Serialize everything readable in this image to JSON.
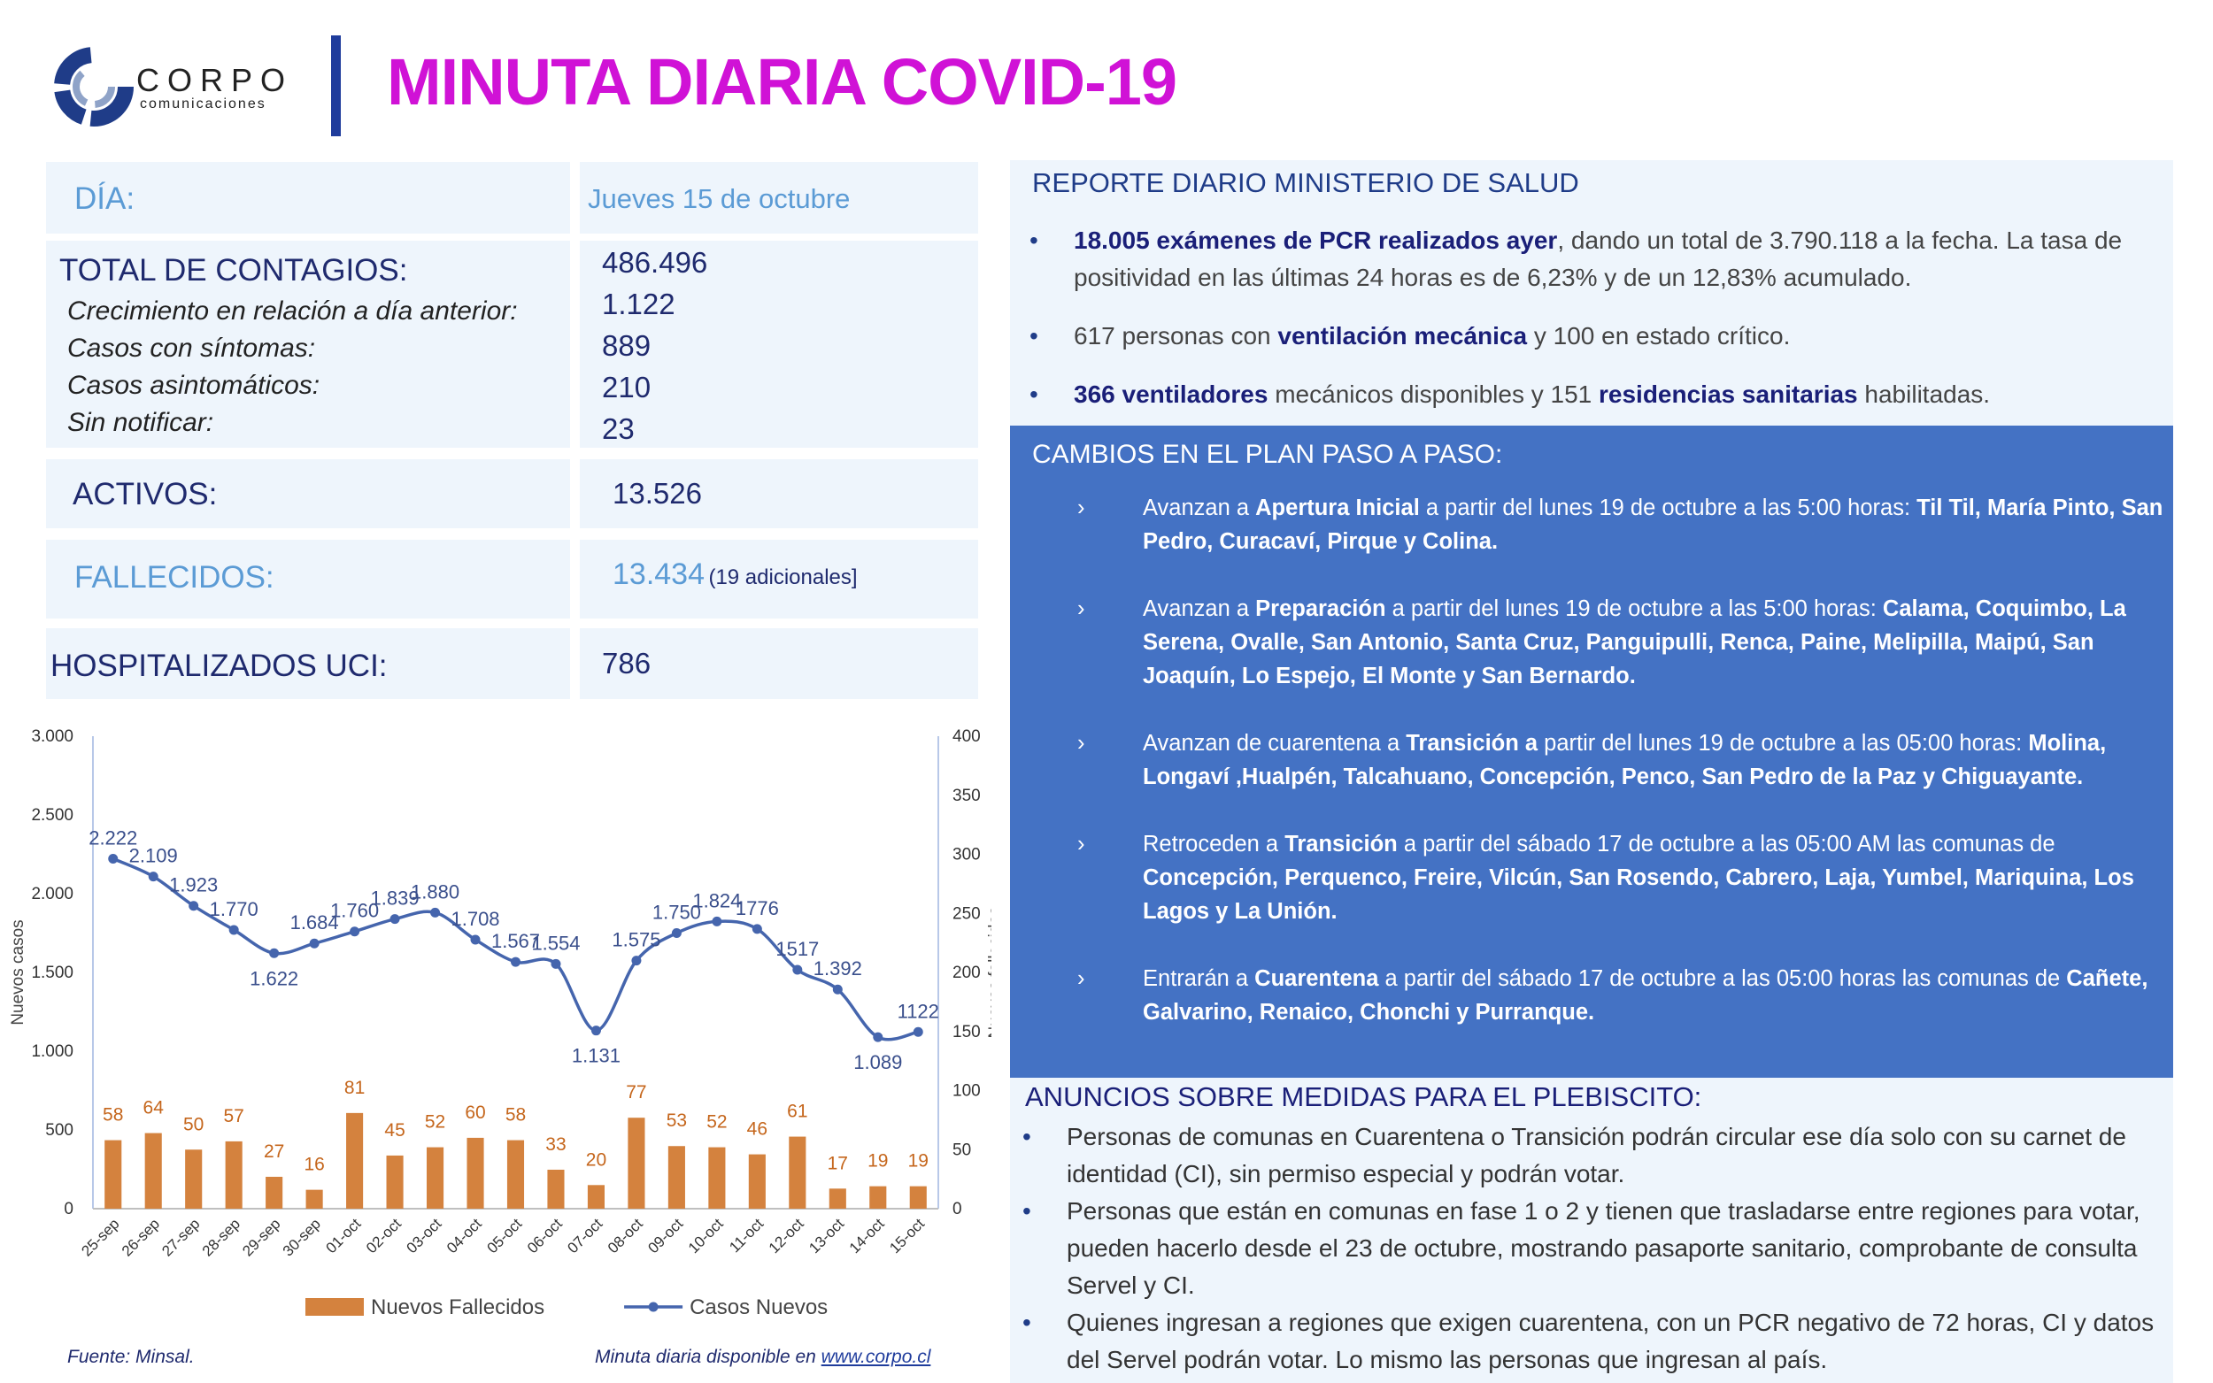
{
  "header": {
    "logo_name": "CORPO",
    "logo_sub": "comunicaciones",
    "title": "MINUTA DIARIA COVID-19"
  },
  "table": {
    "dia": {
      "label": "DÍA:",
      "value": "Jueves 15 de octubre"
    },
    "contagios": {
      "label": "TOTAL DE CONTAGIOS:",
      "value": "486.496"
    },
    "details": [
      [
        "Crecimiento en relación a día anterior:",
        "1.122"
      ],
      [
        "Casos con síntomas:",
        "889"
      ],
      [
        "Casos asintomáticos:",
        "210"
      ],
      [
        "Sin notificar:",
        "23"
      ]
    ],
    "activos": {
      "label": "ACTIVOS:",
      "value": "13.526"
    },
    "fallecidos": {
      "label": "FALLECIDOS:",
      "value": "13.434",
      "note": "(19 adicionales]"
    },
    "uci": {
      "label": "HOSPITALIZADOS UCI:",
      "value": "786"
    }
  },
  "report": {
    "title": "REPORTE DIARIO MINISTERIO DE SALUD",
    "bullets": [
      [
        {
          "text": "18.005 exámenes de PCR realizados ayer",
          "bold": true
        },
        {
          "text": ", dando un total de 3.790.118 a la fecha. La tasa de positividad en las últimas 24 horas es de 6,23% y de un 12,83% acumulado."
        }
      ],
      [
        {
          "text": "617 personas con "
        },
        {
          "text": "ventilación mecánica",
          "bold": true
        },
        {
          "text": " y 100 en estado crítico."
        }
      ],
      [
        {
          "text": "366 ventiladores",
          "bold": true
        },
        {
          "text": " mecánicos disponibles y 151 "
        },
        {
          "text": "residencias sanitarias",
          "bold": true
        },
        {
          "text": " habilitadas."
        }
      ]
    ]
  },
  "plan": {
    "title": "CAMBIOS EN EL PLAN PASO A PASO:",
    "items": [
      [
        {
          "text": "Avanzan a "
        },
        {
          "text": "Apertura Inicial",
          "bold": true
        },
        {
          "text": " a partir del lunes 19 de octubre a las 5:00 horas: "
        },
        {
          "text": "Til Til, María Pinto, San Pedro, Curacaví, Pirque y Colina.",
          "bold": true
        }
      ],
      [
        {
          "text": "Avanzan a "
        },
        {
          "text": "Preparación",
          "bold": true
        },
        {
          "text": " a partir del lunes 19 de octubre a las 5:00 horas: "
        },
        {
          "text": "Calama, Coquimbo, La Serena, Ovalle, San Antonio, Santa Cruz, Panguipulli, Renca, Paine, Melipilla, Maipú, San Joaquín, Lo Espejo, El Monte y San Bernardo.",
          "bold": true
        }
      ],
      [
        {
          "text": "Avanzan de cuarentena a "
        },
        {
          "text": "Transición a",
          "bold": true
        },
        {
          "text": " partir del lunes 19 de octubre a las 05:00 horas: "
        },
        {
          "text": "Molina, Longaví ,Hualpén, Talcahuano, Concepción, Penco, San Pedro de la Paz y Chiguayante.",
          "bold": true
        }
      ],
      [
        {
          "text": "Retroceden a "
        },
        {
          "text": "Transición",
          "bold": true
        },
        {
          "text": " a partir del sábado 17 de octubre a las 05:00 AM las comunas de "
        },
        {
          "text": "Concepción, Perquenco, Freire, Vilcún, San Rosendo, Cabrero, Laja, Yumbel, Mariquina, Los Lagos y La Unión.",
          "bold": true
        }
      ],
      [
        {
          "text": "Entrarán a "
        },
        {
          "text": "Cuarentena",
          "bold": true
        },
        {
          "text": " a partir del sábado 17 de octubre a las 05:00 horas las comunas de "
        },
        {
          "text": "Cañete, Galvarino, Renaico, Chonchi y Purranque.",
          "bold": true
        }
      ]
    ]
  },
  "plebiscito": {
    "title": "ANUNCIOS SOBRE MEDIDAS PARA EL PLEBISCITO:",
    "bullets": [
      "Personas de comunas en Cuarentena o Transición podrán circular ese día solo con su carnet de identidad (CI), sin permiso especial y podrán votar.",
      "Personas que están en comunas en fase 1 o 2 y tienen que trasladarse entre regiones para votar, pueden hacerlo desde el 23 de octubre, mostrando pasaporte sanitario, comprobante de consulta Servel y CI.",
      "Quienes ingresan a regiones que exigen cuarentena, con un PCR negativo de 72 horas, CI y datos del Servel podrán votar. Lo mismo las personas que ingresan al país."
    ]
  },
  "chart_data": {
    "type": "bar_line",
    "categories": [
      "25-sep",
      "26-sep",
      "27-sep",
      "28-sep",
      "29-sep",
      "30-sep",
      "01-oct",
      "02-oct",
      "03-oct",
      "04-oct",
      "05-oct",
      "06-oct",
      "07-oct",
      "08-oct",
      "09-oct",
      "10-oct",
      "11-oct",
      "12-oct",
      "13-oct",
      "14-oct",
      "15-oct"
    ],
    "series": [
      {
        "name": "Nuevos Fallecidos",
        "type": "bar",
        "axis": "y2",
        "color": "#d4823e",
        "values": [
          58,
          64,
          50,
          57,
          27,
          16,
          81,
          45,
          52,
          60,
          58,
          33,
          20,
          77,
          53,
          52,
          46,
          61,
          17,
          19,
          19
        ]
      },
      {
        "name": "Casos Nuevos",
        "type": "line",
        "axis": "y",
        "color": "#4565ad",
        "values": [
          2222,
          2109,
          1923,
          1770,
          1622,
          1684,
          1760,
          1839,
          1880,
          1708,
          1567,
          1554,
          1131,
          1575,
          1750,
          1824,
          1776,
          1517,
          1392,
          1089,
          1122
        ],
        "value_labels": [
          "2.222",
          "2.109",
          "1.923",
          "1.770",
          "1.622",
          "1.684",
          "1.760",
          "1.839",
          "1.880",
          "1.708",
          "1.567",
          "1.554",
          "1.131",
          "1.575",
          "1.750",
          "1.824",
          "1776",
          "1517",
          "1.392",
          "1.089",
          "1122"
        ]
      }
    ],
    "ylabel": "Nuevos casos",
    "y2label": "Nuevos fallecidos",
    "ylim": [
      0,
      3000
    ],
    "yticks": [
      0,
      500,
      {
        "value": 1000,
        "label": "1.000"
      },
      {
        "value": 1500,
        "label": "1.500"
      },
      {
        "value": 2000,
        "label": "2.000"
      },
      {
        "value": 2500,
        "label": "2.500"
      },
      {
        "value": 3000,
        "label": "3.000"
      }
    ],
    "y2lim": [
      0,
      400
    ],
    "y2ticks": [
      0,
      50,
      100,
      150,
      200,
      250,
      300,
      350,
      400
    ],
    "grid": false,
    "legend": "bottom"
  },
  "footer": {
    "source": "Fuente: Minsal.",
    "note": "Minuta diaria disponible en",
    "link": "www.corpo.cl"
  }
}
